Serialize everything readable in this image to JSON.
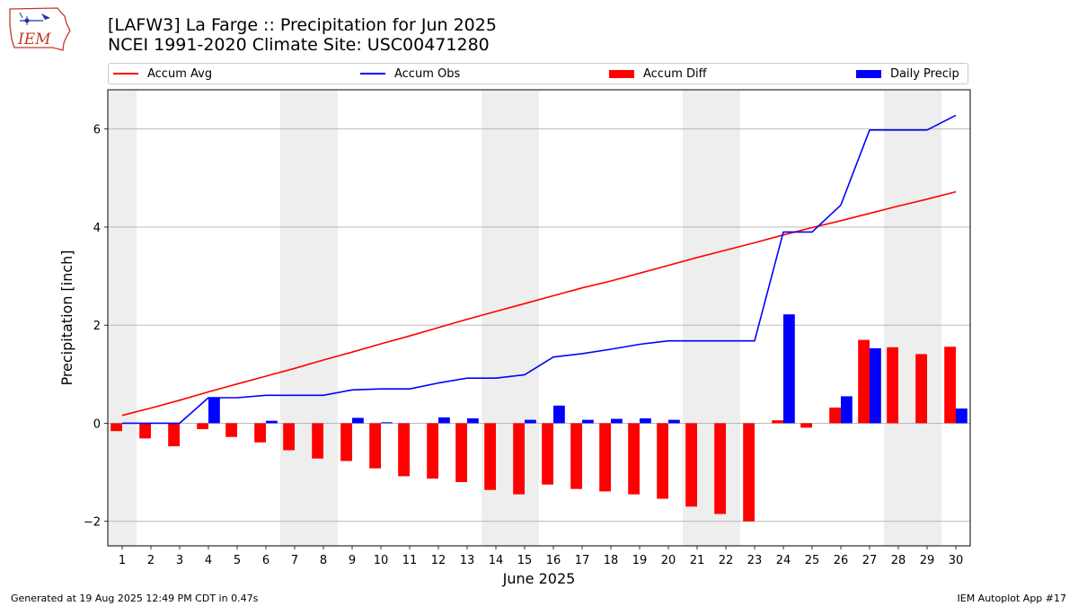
{
  "header": {
    "title_line1": "[LAFW3] La Farge :: Precipitation for Jun 2025",
    "title_line2": "NCEI 1991-2020 Climate Site: USC00471280"
  },
  "logo": {
    "text": "IEM"
  },
  "legend": [
    {
      "label": "Accum Avg",
      "kind": "line",
      "color": "#ff0000"
    },
    {
      "label": "Accum Obs",
      "kind": "line",
      "color": "#0000ff"
    },
    {
      "label": "Accum Diff",
      "kind": "bar",
      "color": "#ff0000"
    },
    {
      "label": "Daily Precip",
      "kind": "bar",
      "color": "#0000ff"
    }
  ],
  "footer": {
    "left": "Generated at 19 Aug 2025 12:49 PM CDT in 0.47s",
    "right": "IEM Autoplot App #17"
  },
  "chart_data": {
    "type": "bar",
    "title": "[LAFW3] La Farge :: Precipitation for Jun 2025",
    "subtitle": "NCEI 1991-2020 Climate Site: USC00471280",
    "xlabel": "June 2025",
    "ylabel": "Precipitation [inch]",
    "ylim": [
      -2.5,
      6.8
    ],
    "yticks": [
      -2,
      0,
      2,
      4,
      6
    ],
    "ytick_labels": [
      "−2",
      "0",
      "2",
      "4",
      "6"
    ],
    "grid": "horizontal",
    "legend_position": "top",
    "categories": [
      "1",
      "2",
      "3",
      "4",
      "5",
      "6",
      "7",
      "8",
      "9",
      "10",
      "11",
      "12",
      "13",
      "14",
      "15",
      "16",
      "17",
      "18",
      "19",
      "20",
      "21",
      "22",
      "23",
      "24",
      "25",
      "26",
      "27",
      "28",
      "29",
      "30"
    ],
    "weekend_days": [
      1,
      7,
      8,
      14,
      15,
      21,
      22,
      28,
      29
    ],
    "series": [
      {
        "name": "Accum Avg",
        "kind": "line",
        "color": "#ff0000",
        "values": [
          0.16,
          0.31,
          0.47,
          0.64,
          0.8,
          0.96,
          1.12,
          1.29,
          1.45,
          1.62,
          1.78,
          1.95,
          2.12,
          2.28,
          2.44,
          2.6,
          2.76,
          2.9,
          3.06,
          3.22,
          3.38,
          3.53,
          3.68,
          3.84,
          3.99,
          4.13,
          4.28,
          4.43,
          4.57,
          4.72
        ]
      },
      {
        "name": "Accum Obs",
        "kind": "line",
        "color": "#0000ff",
        "values": [
          0.0,
          0.0,
          0.0,
          0.52,
          0.52,
          0.57,
          0.57,
          0.57,
          0.68,
          0.7,
          0.7,
          0.82,
          0.92,
          0.92,
          0.99,
          1.35,
          1.42,
          1.51,
          1.61,
          1.68,
          1.68,
          1.68,
          1.68,
          3.9,
          3.9,
          4.45,
          5.98,
          5.98,
          5.98,
          6.28
        ]
      },
      {
        "name": "Accum Diff",
        "kind": "bar",
        "color": "#ff0000",
        "values": [
          -0.16,
          -0.31,
          -0.47,
          -0.12,
          -0.28,
          -0.39,
          -0.55,
          -0.72,
          -0.77,
          -0.92,
          -1.08,
          -1.13,
          -1.2,
          -1.36,
          -1.45,
          -1.25,
          -1.34,
          -1.39,
          -1.45,
          -1.54,
          -1.7,
          -1.85,
          -2.0,
          0.06,
          -0.09,
          0.32,
          1.7,
          1.55,
          1.41,
          1.56
        ]
      },
      {
        "name": "Daily Precip",
        "kind": "bar",
        "color": "#0000ff",
        "values": [
          0.0,
          0.0,
          0.0,
          0.52,
          0.0,
          0.05,
          0.0,
          0.0,
          0.11,
          0.02,
          0.0,
          0.12,
          0.1,
          0.0,
          0.07,
          0.36,
          0.07,
          0.09,
          0.1,
          0.07,
          0.0,
          0.0,
          0.0,
          2.22,
          0.0,
          0.55,
          1.53,
          0.0,
          0.0,
          0.3
        ]
      }
    ]
  }
}
